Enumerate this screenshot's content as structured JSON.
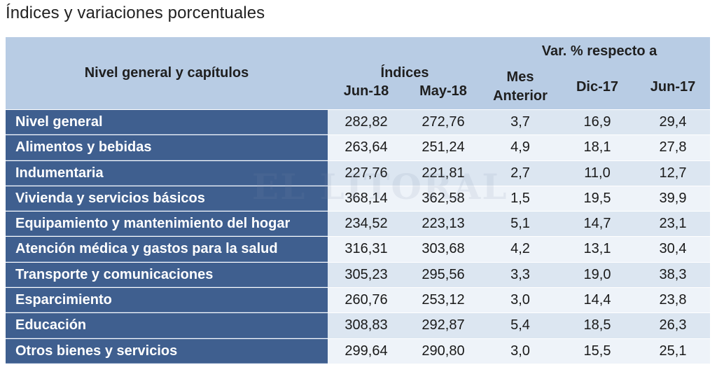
{
  "title": "Índices y variaciones porcentuales",
  "header": {
    "category_label": "Nivel general y capítulos",
    "indices_label": "Índices",
    "var_label": "Var. % respecto a",
    "col_jun18": "Jun-18",
    "col_may18": "May-18",
    "col_mes": "Mes",
    "col_anterior": "Anterior",
    "col_dic17": "Dic-17",
    "col_jun17": "Jun-17"
  },
  "watermark": "EL LITORAL",
  "rows": [
    {
      "label": "Nivel general",
      "jun18": "282,82",
      "may18": "272,76",
      "mes": "3,7",
      "dic17": "16,9",
      "jun17": "29,4"
    },
    {
      "label": "Alimentos y bebidas",
      "jun18": "263,64",
      "may18": "251,24",
      "mes": "4,9",
      "dic17": "18,1",
      "jun17": "27,8"
    },
    {
      "label": "Indumentaria",
      "jun18": "227,76",
      "may18": "221,81",
      "mes": "2,7",
      "dic17": "11,0",
      "jun17": "12,7"
    },
    {
      "label": "Vivienda y servicios básicos",
      "jun18": "368,14",
      "may18": "362,58",
      "mes": "1,5",
      "dic17": "19,5",
      "jun17": "39,9"
    },
    {
      "label": "Equipamiento y mantenimiento del hogar",
      "jun18": "234,52",
      "may18": "223,13",
      "mes": "5,1",
      "dic17": "14,7",
      "jun17": "23,1"
    },
    {
      "label": "Atención médica y gastos para la salud",
      "jun18": "316,31",
      "may18": "303,68",
      "mes": "4,2",
      "dic17": "13,1",
      "jun17": "30,4"
    },
    {
      "label": "Transporte y comunicaciones",
      "jun18": "305,23",
      "may18": "295,56",
      "mes": "3,3",
      "dic17": "19,0",
      "jun17": "38,3"
    },
    {
      "label": "Esparcimiento",
      "jun18": "260,76",
      "may18": "253,12",
      "mes": "3,0",
      "dic17": "14,4",
      "jun17": "23,8"
    },
    {
      "label": "Educación",
      "jun18": "308,83",
      "may18": "292,87",
      "mes": "5,4",
      "dic17": "18,5",
      "jun17": "26,3"
    },
    {
      "label": "Otros bienes y servicios",
      "jun18": "299,64",
      "may18": "290,80",
      "mes": "3,0",
      "dic17": "15,5",
      "jun17": "25,1"
    }
  ]
}
